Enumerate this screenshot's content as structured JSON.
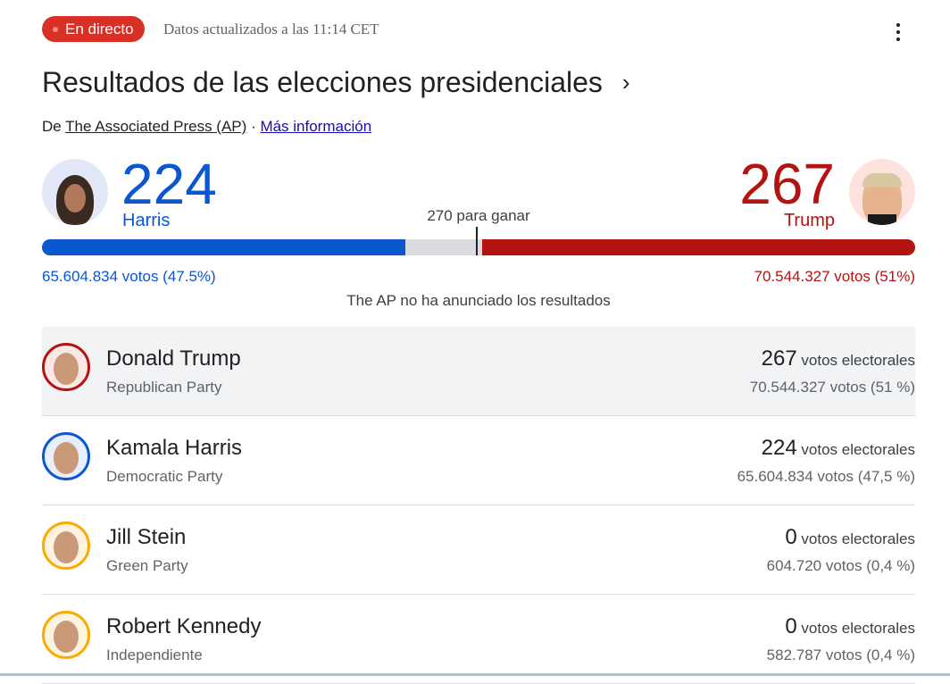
{
  "header": {
    "live_label": "En directo",
    "updated": "Datos actualizados a las 11:14 CET",
    "title": "Resultados de las elecciones presidenciales",
    "source_prefix": "De",
    "source": "The Associated Press (AP)",
    "separator": "·",
    "more_info": "Más información"
  },
  "summary": {
    "left": {
      "name": "Harris",
      "electoral": "224",
      "votes": "65.604.834 votos (47.5%)",
      "color": "#0b57d0"
    },
    "right": {
      "name": "Trump",
      "electoral": "267",
      "votes": "70.544.327 votos (51%)",
      "color": "#b31412"
    },
    "threshold_label": "270 para ganar",
    "total_electoral": 538,
    "threshold": 270,
    "status": "The AP no ha anunciado los resultados"
  },
  "candidates": [
    {
      "name": "Donald Trump",
      "party": "Republican Party",
      "electoral": "267",
      "electoral_label": "votos electorales",
      "votes": "70.544.327 votos (51 %)",
      "ring": "#b31412",
      "bg": "#fce8e6",
      "highlight": true
    },
    {
      "name": "Kamala Harris",
      "party": "Democratic Party",
      "electoral": "224",
      "electoral_label": "votos electorales",
      "votes": "65.604.834 votos (47,5 %)",
      "ring": "#0b57d0",
      "bg": "#e8eefc",
      "highlight": false
    },
    {
      "name": "Jill Stein",
      "party": "Green Party",
      "electoral": "0",
      "electoral_label": "votos electorales",
      "votes": "604.720 votos (0,4 %)",
      "ring": "#f9ab00",
      "bg": "#fef3e0",
      "highlight": false
    },
    {
      "name": "Robert Kennedy",
      "party": "Independiente",
      "electoral": "0",
      "electoral_label": "votos electorales",
      "votes": "582.787 votos (0,4 %)",
      "ring": "#f9ab00",
      "bg": "#fef3e0",
      "highlight": false
    }
  ]
}
